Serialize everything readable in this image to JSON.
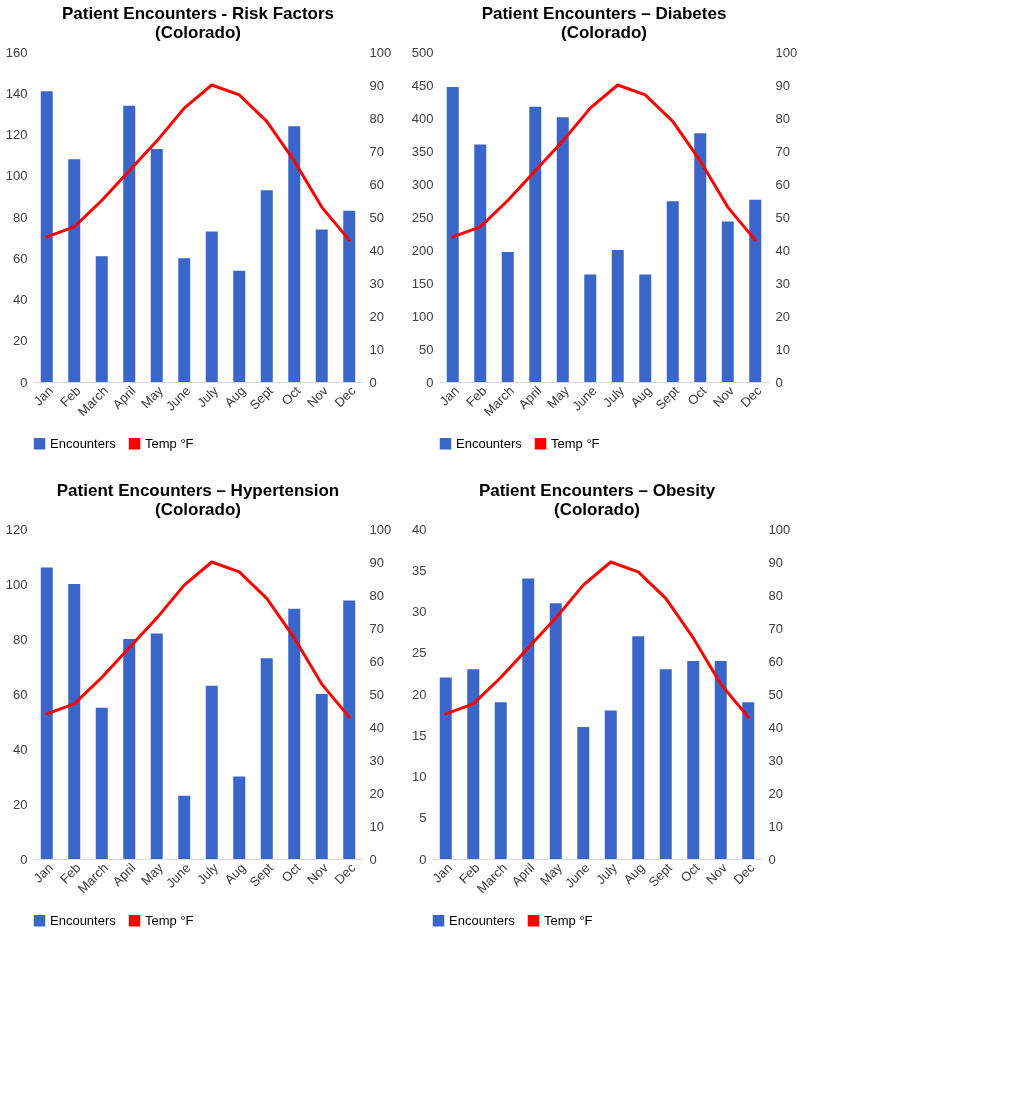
{
  "chart_data": [
    {
      "type": "bar",
      "title": "Patient Encounters - Risk Factors (Colorado)",
      "categories": [
        "Jan",
        "Feb",
        "March",
        "April",
        "May",
        "June",
        "July",
        "Aug",
        "Sept",
        "Oct",
        "Nov",
        "Dec"
      ],
      "series": [
        {
          "name": "Encounters",
          "color": "#3b66c9",
          "values": [
            141,
            108,
            61,
            134,
            113,
            60,
            73,
            54,
            93,
            124,
            74,
            83
          ]
        },
        {
          "name": "Temp °F",
          "type": "line",
          "axis": "y2",
          "color": "#ff0000",
          "values": [
            44,
            47,
            55,
            64,
            73,
            83,
            90,
            87,
            79,
            67,
            53,
            43
          ]
        }
      ],
      "ylim": [
        0,
        160
      ],
      "yticks": [
        0,
        20,
        40,
        60,
        80,
        100,
        120,
        140,
        160
      ],
      "y2lim": [
        0,
        100
      ],
      "y2ticks": [
        0,
        10,
        20,
        30,
        40,
        50,
        60,
        70,
        80,
        90,
        100
      ],
      "grid": false,
      "legend": "bottom"
    },
    {
      "type": "bar",
      "title": "Patient Encounters – Diabetes (Colorado)",
      "categories": [
        "Jan",
        "Feb",
        "March",
        "April",
        "May",
        "June",
        "July",
        "Aug",
        "Sept",
        "Oct",
        "Nov",
        "Dec"
      ],
      "series": [
        {
          "name": "Encounters",
          "color": "#3b66c9",
          "values": [
            447,
            360,
            197,
            417,
            401,
            163,
            200,
            163,
            274,
            377,
            243,
            276
          ]
        },
        {
          "name": "Temp °F",
          "type": "line",
          "axis": "y2",
          "color": "#ff0000",
          "values": [
            44,
            47,
            55,
            64,
            73,
            83,
            90,
            87,
            79,
            67,
            53,
            43
          ]
        }
      ],
      "ylim": [
        0,
        500
      ],
      "yticks": [
        0,
        50,
        100,
        150,
        200,
        250,
        300,
        350,
        400,
        450,
        500
      ],
      "y2lim": [
        0,
        100
      ],
      "y2ticks": [
        0,
        10,
        20,
        30,
        40,
        50,
        60,
        70,
        80,
        90,
        100
      ],
      "grid": false,
      "legend": "bottom"
    },
    {
      "type": "bar",
      "title": "Patient Encounters – Hypertension (Colorado)",
      "categories": [
        "Jan",
        "Feb",
        "March",
        "April",
        "May",
        "June",
        "July",
        "Aug",
        "Sept",
        "Oct",
        "Nov",
        "Dec"
      ],
      "series": [
        {
          "name": "Encounters",
          "color": "#3b66c9",
          "values": [
            106,
            100,
            55,
            80,
            82,
            23,
            63,
            30,
            73,
            91,
            60,
            94
          ]
        },
        {
          "name": "Temp °F",
          "type": "line",
          "axis": "y2",
          "color": "#ff0000",
          "values": [
            44,
            47,
            55,
            64,
            73,
            83,
            90,
            87,
            79,
            67,
            53,
            43
          ]
        }
      ],
      "ylim": [
        0,
        120
      ],
      "yticks": [
        0,
        20,
        40,
        60,
        80,
        100,
        120
      ],
      "y2lim": [
        0,
        100
      ],
      "y2ticks": [
        0,
        10,
        20,
        30,
        40,
        50,
        60,
        70,
        80,
        90,
        100
      ],
      "grid": false,
      "legend": "bottom"
    },
    {
      "type": "bar",
      "title": "Patient Encounters – Obesity (Colorado)",
      "categories": [
        "Jan",
        "Feb",
        "March",
        "April",
        "May",
        "June",
        "July",
        "Aug",
        "Sept",
        "Oct",
        "Nov",
        "Dec"
      ],
      "series": [
        {
          "name": "Encounters",
          "color": "#3b66c9",
          "values": [
            22,
            23,
            19,
            34,
            31,
            16,
            18,
            27,
            23,
            24,
            24,
            19
          ]
        },
        {
          "name": "Temp °F",
          "type": "line",
          "axis": "y2",
          "color": "#ff0000",
          "values": [
            44,
            47,
            55,
            64,
            73,
            83,
            90,
            87,
            79,
            67,
            53,
            43
          ]
        }
      ],
      "ylim": [
        0,
        40
      ],
      "yticks": [
        0,
        5,
        10,
        15,
        20,
        25,
        30,
        35,
        40
      ],
      "y2lim": [
        0,
        100
      ],
      "y2ticks": [
        0,
        10,
        20,
        30,
        40,
        50,
        60,
        70,
        80,
        90,
        100
      ],
      "grid": false,
      "legend": "bottom"
    }
  ]
}
